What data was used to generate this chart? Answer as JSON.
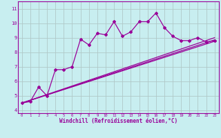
{
  "xlabel": "Windchill (Refroidissement éolien,°C)",
  "bg_color": "#c8eef0",
  "line_color": "#990099",
  "grid_color": "#b0c8c8",
  "xlim": [
    -0.5,
    23.5
  ],
  "ylim": [
    3.8,
    11.5
  ],
  "xticks": [
    0,
    1,
    2,
    3,
    4,
    5,
    6,
    7,
    8,
    9,
    10,
    11,
    12,
    13,
    14,
    15,
    16,
    17,
    18,
    19,
    20,
    21,
    22,
    23
  ],
  "yticks": [
    4,
    5,
    6,
    7,
    8,
    9,
    10,
    11
  ],
  "series1_x": [
    0,
    1,
    2,
    3,
    4,
    5,
    6,
    7,
    8,
    9,
    10,
    11,
    12,
    13,
    14,
    15,
    16,
    17,
    18,
    19,
    20,
    21,
    22,
    23
  ],
  "series1_y": [
    4.5,
    4.6,
    5.6,
    5.0,
    6.8,
    6.8,
    7.0,
    8.9,
    8.5,
    9.3,
    9.2,
    10.1,
    9.1,
    9.4,
    10.1,
    10.1,
    10.7,
    9.7,
    9.1,
    8.8,
    8.8,
    9.0,
    8.7,
    8.8
  ],
  "series2_x": [
    0,
    23
  ],
  "series2_y": [
    4.5,
    8.75
  ],
  "series3_x": [
    0,
    23
  ],
  "series3_y": [
    4.5,
    8.85
  ],
  "series4_x": [
    0,
    23
  ],
  "series4_y": [
    4.5,
    9.0
  ]
}
